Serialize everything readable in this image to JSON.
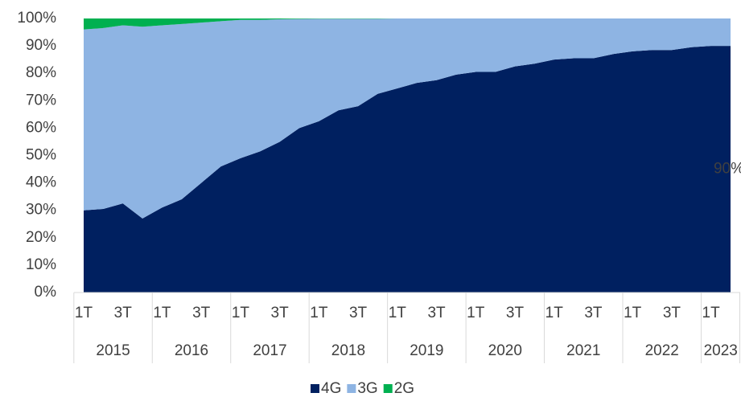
{
  "chart_data": {
    "type": "stacked_area",
    "categories": [
      "1T",
      null,
      "3T",
      null,
      "1T",
      null,
      "3T",
      null,
      "1T",
      null,
      "3T",
      null,
      "1T",
      null,
      "3T",
      null,
      "1T",
      null,
      "3T",
      null,
      "1T",
      null,
      "3T",
      null,
      "1T",
      null,
      "3T",
      null,
      "1T",
      null,
      "3T",
      null,
      "1T",
      null
    ],
    "years": [
      "2015",
      "2016",
      "2017",
      "2018",
      "2019",
      "2020",
      "2021",
      "2022",
      "2023"
    ],
    "series": [
      {
        "name": "4G",
        "color": "#002060",
        "values": [
          30,
          30.5,
          32.5,
          27,
          31,
          34,
          40,
          46,
          49,
          51.5,
          55,
          60,
          62.5,
          66.5,
          68,
          72.5,
          74.5,
          76.5,
          77.5,
          79.5,
          80.5,
          80.5,
          82.5,
          83.5,
          85,
          85.5,
          85.5,
          87,
          88,
          88.5,
          88.5,
          89.5,
          90,
          90
        ],
        "value_labels": [
          null,
          null,
          null,
          null,
          null,
          null,
          null,
          null,
          null,
          null,
          null,
          null,
          null,
          null,
          null,
          null,
          null,
          null,
          null,
          null,
          null,
          null,
          null,
          null,
          null,
          null,
          null,
          null,
          null,
          null,
          null,
          null,
          null,
          "90%"
        ]
      },
      {
        "name": "3G",
        "color": "#8eb4e3",
        "values": [
          66,
          66,
          65,
          70,
          66.5,
          64,
          58.5,
          53,
          50.5,
          48,
          44.7,
          39.8,
          37.4,
          33.4,
          31.9,
          27.4,
          25.5,
          23.5,
          22.5,
          20.5,
          19.5,
          19.5,
          17.5,
          16.5,
          15,
          14.5,
          14.5,
          13,
          12,
          11.5,
          11.5,
          10.5,
          10,
          10
        ]
      },
      {
        "name": "2G",
        "color": "#00b050",
        "values": [
          4,
          3.5,
          2.5,
          3,
          2.5,
          2,
          1.5,
          1,
          0.5,
          0.5,
          0.3,
          0.2,
          0.1,
          0.1,
          0.1,
          0.1,
          0,
          0,
          0,
          0,
          0,
          0,
          0,
          0,
          0,
          0,
          0,
          0,
          0,
          0,
          0,
          0,
          0,
          0
        ]
      }
    ],
    "ylim": [
      0,
      100
    ],
    "yticks": [
      {
        "value": 0,
        "label": "0%"
      },
      {
        "value": 10,
        "label": "10%"
      },
      {
        "value": 20,
        "label": "20%"
      },
      {
        "value": 30,
        "label": "30%"
      },
      {
        "value": 40,
        "label": "40%"
      },
      {
        "value": 50,
        "label": "50%"
      },
      {
        "value": 60,
        "label": "60%"
      },
      {
        "value": 70,
        "label": "70%"
      },
      {
        "value": 80,
        "label": "80%"
      },
      {
        "value": 90,
        "label": "90%"
      },
      {
        "value": 100,
        "label": "100%"
      }
    ],
    "legend": "bottom"
  }
}
